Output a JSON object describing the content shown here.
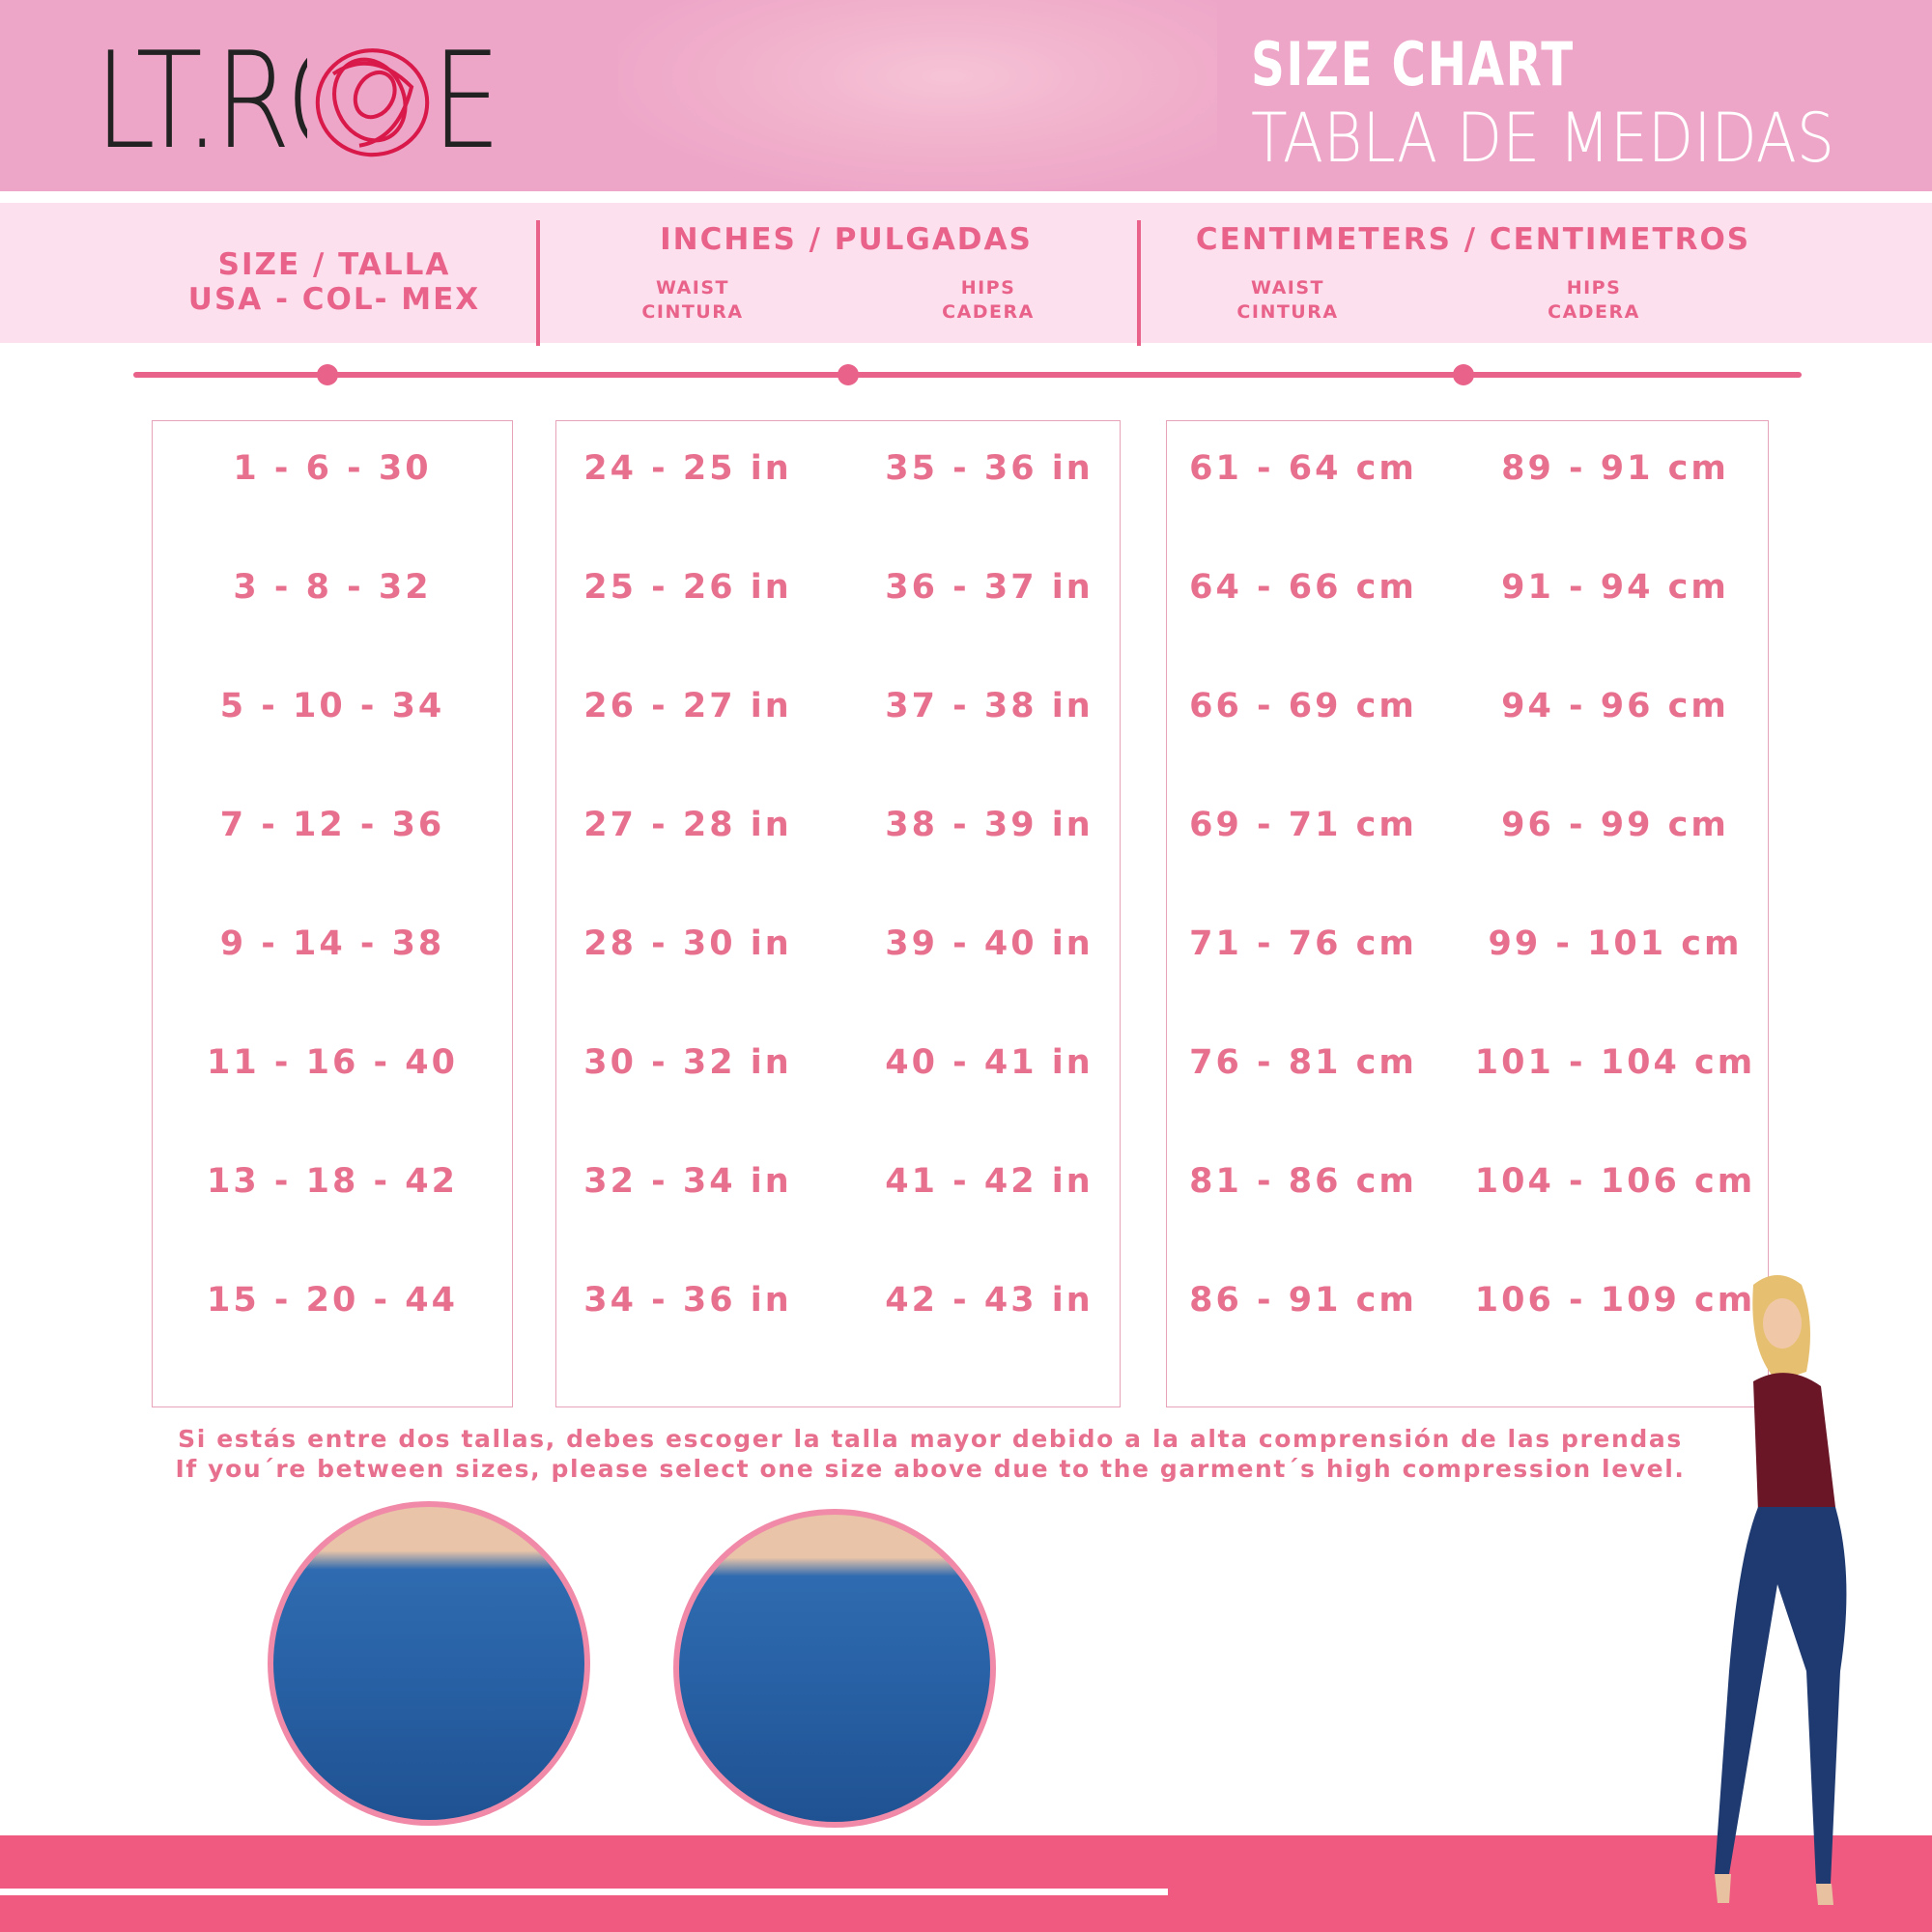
{
  "banner": {
    "logo": "LT.ROSE",
    "title": "SIZE CHART",
    "subtitle": "TABLA DE MEDIDAS"
  },
  "header": {
    "size": {
      "line1": "SIZE / TALLA",
      "line2": "USA - COL- MEX"
    },
    "inches": {
      "title": "INCHES / PULGADAS",
      "waist": [
        "WAIST",
        "CINTURA"
      ],
      "hips": [
        "HIPS",
        "CADERA"
      ]
    },
    "centimeters": {
      "title": "CENTIMETERS / CENTIMETROS",
      "waist": [
        "WAIST",
        "CINTURA"
      ],
      "hips": [
        "HIPS",
        "CADERA"
      ]
    }
  },
  "rows": [
    {
      "size": "1 - 6 - 30",
      "in_waist": "24 - 25 in",
      "in_hips": "35 - 36 in",
      "cm_waist": "61 - 64 cm",
      "cm_hips": "89 - 91 cm"
    },
    {
      "size": "3 - 8 - 32",
      "in_waist": "25 - 26 in",
      "in_hips": "36 - 37 in",
      "cm_waist": "64 - 66 cm",
      "cm_hips": "91 - 94 cm"
    },
    {
      "size": "5 - 10 - 34",
      "in_waist": "26 - 27 in",
      "in_hips": "37 - 38 in",
      "cm_waist": "66 - 69 cm",
      "cm_hips": "94 - 96 cm"
    },
    {
      "size": "7 - 12 - 36",
      "in_waist": "27 - 28 in",
      "in_hips": "38 - 39 in",
      "cm_waist": "69 - 71 cm",
      "cm_hips": "96 - 99 cm"
    },
    {
      "size": "9 - 14 - 38",
      "in_waist": "28 - 30 in",
      "in_hips": "39 - 40 in",
      "cm_waist": "71 - 76 cm",
      "cm_hips": "99 - 101 cm"
    },
    {
      "size": "11 - 16 - 40",
      "in_waist": "30 - 32 in",
      "in_hips": "40 - 41 in",
      "cm_waist": "76 - 81 cm",
      "cm_hips": "101 - 104 cm"
    },
    {
      "size": "13 - 18 - 42",
      "in_waist": "32 - 34 in",
      "in_hips": "41 - 42 in",
      "cm_waist": "81 - 86 cm",
      "cm_hips": "104 - 106 cm"
    },
    {
      "size": "15 - 20 - 44",
      "in_waist": "34 - 36 in",
      "in_hips": "42 - 43 in",
      "cm_waist": "86 - 91 cm",
      "cm_hips": "106 - 109 cm"
    }
  ],
  "notes": {
    "es": "Si estás entre dos tallas, debes escoger la talla mayor debido a la alta comprensión de las prendas",
    "en": "If you´re between sizes, please select one size above due to the garment´s high compression level."
  },
  "colors": {
    "banner": "#eea6c8",
    "header_row": "#fde0ee",
    "accent": "#e8628a",
    "text": "#e8708f",
    "bottom_bar": "#f05a80"
  }
}
